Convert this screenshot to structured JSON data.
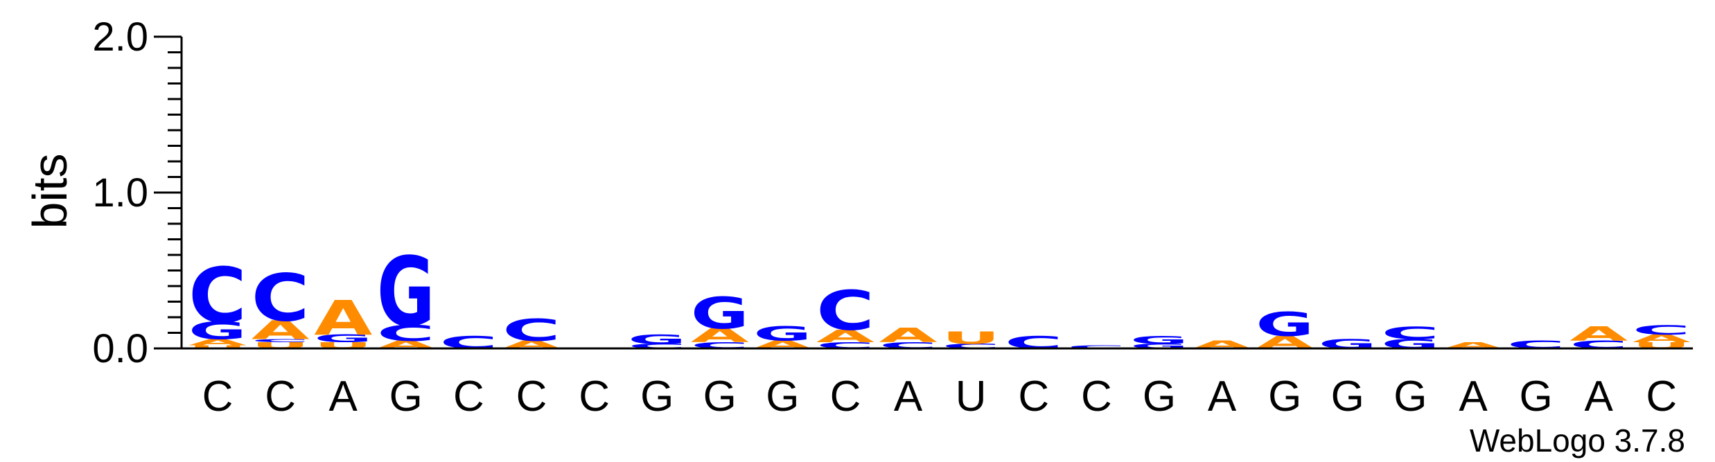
{
  "chart_data": {
    "type": "sequence-logo",
    "ylabel": "bits",
    "ylim": [
      0,
      2.0
    ],
    "yticks": [
      "0.0",
      "1.0",
      "2.0"
    ],
    "positions": [
      "C",
      "C",
      "A",
      "G",
      "C",
      "C",
      "C",
      "G",
      "G",
      "G",
      "C",
      "A",
      "U",
      "C",
      "C",
      "G",
      "A",
      "G",
      "G",
      "G",
      "A",
      "G",
      "A",
      "C"
    ],
    "stacks": [
      [
        [
          "U",
          0.02
        ],
        [
          "A",
          0.04
        ],
        [
          "G",
          0.11
        ],
        [
          "C",
          0.35
        ]
      ],
      [
        [
          "U",
          0.04
        ],
        [
          "C",
          0.02
        ],
        [
          "A",
          0.12
        ],
        [
          "C",
          0.3
        ]
      ],
      [
        [
          "U",
          0.04
        ],
        [
          "G",
          0.05
        ],
        [
          "A",
          0.22
        ]
      ],
      [
        [
          "A",
          0.05
        ],
        [
          "C",
          0.1
        ],
        [
          "G",
          0.44
        ]
      ],
      [
        [
          "C",
          0.08
        ]
      ],
      [
        [
          "A",
          0.05
        ],
        [
          "C",
          0.14
        ]
      ],
      [],
      [
        [
          "C",
          0.03
        ],
        [
          "G",
          0.06
        ]
      ],
      [
        [
          "C",
          0.04
        ],
        [
          "A",
          0.09
        ],
        [
          "G",
          0.2
        ]
      ],
      [
        [
          "A",
          0.05
        ],
        [
          "G",
          0.09
        ]
      ],
      [
        [
          "C",
          0.04
        ],
        [
          "A",
          0.08
        ],
        [
          "C",
          0.25
        ]
      ],
      [
        [
          "C",
          0.04
        ],
        [
          "A",
          0.09
        ]
      ],
      [
        [
          "C",
          0.03
        ],
        [
          "U",
          0.08
        ]
      ],
      [
        [
          "C",
          0.08
        ]
      ],
      [
        [
          "C",
          0.02
        ]
      ],
      [
        [
          "G",
          0.03
        ],
        [
          "G",
          0.05
        ]
      ],
      [
        [
          "A",
          0.05
        ]
      ],
      [
        [
          "A",
          0.08
        ],
        [
          "G",
          0.15
        ]
      ],
      [
        [
          "G",
          0.06
        ]
      ],
      [
        [
          "G",
          0.06
        ],
        [
          "C",
          0.08
        ]
      ],
      [
        [
          "A",
          0.04
        ]
      ],
      [
        [
          "C",
          0.05
        ]
      ],
      [
        [
          "C",
          0.05
        ],
        [
          "A",
          0.09
        ]
      ],
      [
        [
          "U",
          0.04
        ],
        [
          "A",
          0.05
        ],
        [
          "C",
          0.06
        ]
      ]
    ]
  },
  "colors": {
    "A": "#ff8c00",
    "C": "#0000ff",
    "G": "#0000ff",
    "U": "#ff8c00",
    "axis": "#000000"
  },
  "credit": "WebLogo 3.7.8"
}
